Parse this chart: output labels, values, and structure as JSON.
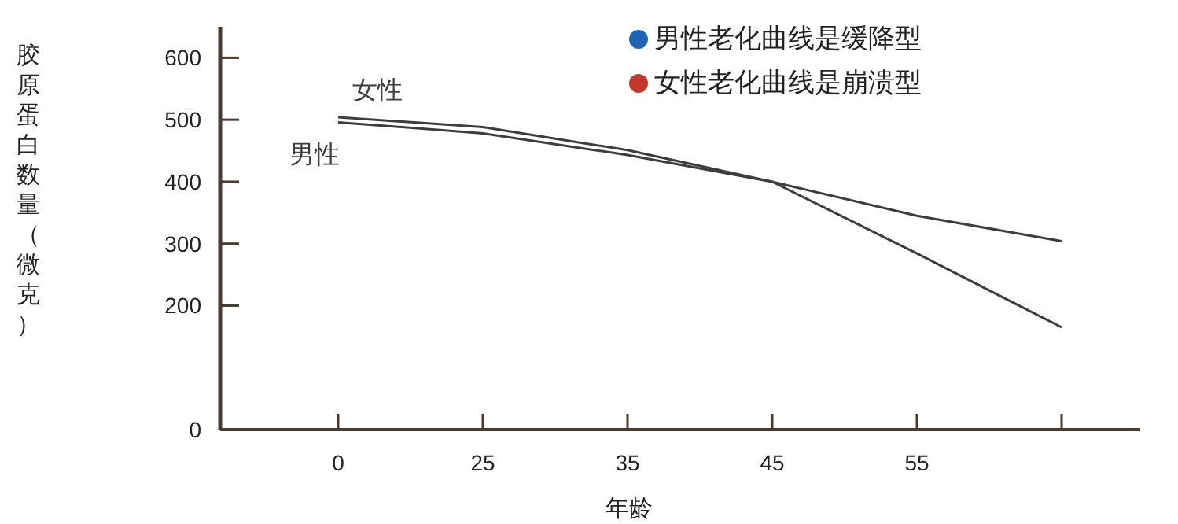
{
  "chart_data": {
    "type": "line",
    "ylabel": "胶原蛋白数量（微克）",
    "xlabel": "年龄",
    "categories": [
      "0",
      "25",
      "35",
      "45",
      "55",
      null
    ],
    "ylim": [
      0,
      650
    ],
    "yticks": [
      0,
      200,
      300,
      400,
      500,
      600
    ],
    "series": [
      {
        "name": "女性",
        "color": "#3d3d3d",
        "values": [
          504,
          488,
          451,
          400,
          284,
          165
        ]
      },
      {
        "name": "男性",
        "color": "#3d3d3d",
        "values": [
          496,
          478,
          443,
          400,
          345,
          304
        ]
      }
    ],
    "annotations": [
      "男性老化曲线是缓降型",
      "女性老化曲线是崩溃型"
    ],
    "grid": false
  }
}
